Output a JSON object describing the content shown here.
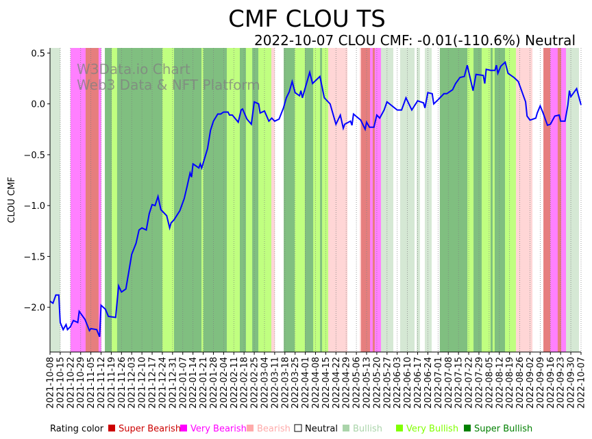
{
  "chart_data": {
    "type": "line",
    "title": "CMF CLOU TS",
    "subtitle": "2022-10-07 CLOU CMF: -0.01(-110.6%) Neutral",
    "xlabel": "",
    "ylabel": "CLOU CMF",
    "x_origin_date": "2021-10-08",
    "x_unit": "days since 2021-10-08",
    "xlim": [
      0,
      364
    ],
    "ylim": [
      -2.44,
      0.55
    ],
    "yticks": [
      0.5,
      0.0,
      -0.5,
      -1.0,
      -1.5,
      -2.0
    ],
    "ytick_labels": [
      "0.5",
      "0.0",
      "−0.5",
      "−1.0",
      "−1.5",
      "−2.0"
    ],
    "xtick_labels": [
      "2021-10-08",
      "2021-10-15",
      "2021-10-22",
      "2021-10-29",
      "2021-11-05",
      "2021-11-12",
      "2021-11-19",
      "2021-11-26",
      "2021-12-03",
      "2021-12-10",
      "2021-12-17",
      "2021-12-24",
      "2021-12-31",
      "2022-01-07",
      "2022-01-14",
      "2022-01-21",
      "2022-01-28",
      "2022-02-04",
      "2022-02-11",
      "2022-02-18",
      "2022-02-25",
      "2022-03-04",
      "2022-03-11",
      "2022-03-18",
      "2022-03-25",
      "2022-04-01",
      "2022-04-08",
      "2022-04-15",
      "2022-04-22",
      "2022-04-29",
      "2022-05-06",
      "2022-05-13",
      "2022-05-20",
      "2022-05-27",
      "2022-06-03",
      "2022-06-10",
      "2022-06-17",
      "2022-06-24",
      "2022-07-01",
      "2022-07-08",
      "2022-07-15",
      "2022-07-22",
      "2022-07-29",
      "2022-08-05",
      "2022-08-12",
      "2022-08-19",
      "2022-08-26",
      "2022-09-02",
      "2022-09-09",
      "2022-09-16",
      "2022-09-23",
      "2022-09-30",
      "2022-10-07"
    ],
    "series": [
      {
        "name": "CLOU CMF",
        "color": "#0000ff",
        "x": [
          0,
          2,
          4,
          6,
          7,
          9,
          11,
          12,
          14,
          16,
          19,
          20,
          24,
          27,
          28,
          32,
          34,
          35,
          38,
          40,
          45,
          47,
          49,
          52,
          54,
          56,
          59,
          61,
          63,
          66,
          68,
          70,
          72,
          74,
          76,
          80,
          82,
          83,
          85,
          89,
          92,
          94,
          96,
          97,
          98,
          102,
          103,
          104,
          108,
          110,
          112,
          115,
          117,
          119,
          122,
          123,
          125,
          129,
          131,
          132,
          135,
          138,
          140,
          143,
          144,
          147,
          150,
          152,
          154,
          157,
          160,
          162,
          164,
          166,
          168,
          171,
          172,
          173,
          178,
          180,
          185,
          188,
          192,
          196,
          199,
          201,
          202,
          206,
          207,
          208,
          213,
          216,
          217,
          219,
          222,
          224,
          226,
          229,
          231,
          238,
          241,
          244,
          248,
          252,
          256,
          257,
          259,
          262,
          263,
          266,
          270,
          272,
          276,
          278,
          281,
          284,
          286,
          290,
          292,
          297,
          298,
          299,
          302,
          305,
          306,
          307,
          309,
          312,
          314,
          318,
          321,
          326,
          327,
          329,
          333,
          334,
          336,
          338,
          341,
          343,
          346,
          349,
          350,
          353,
          355,
          356,
          357,
          361,
          364
        ],
        "y": [
          -1.94,
          -1.96,
          -1.88,
          -1.88,
          -2.15,
          -2.22,
          -2.17,
          -2.22,
          -2.19,
          -2.13,
          -2.15,
          -2.04,
          -2.12,
          -2.23,
          -2.21,
          -2.22,
          -2.29,
          -1.98,
          -2.02,
          -2.09,
          -2.1,
          -1.79,
          -1.85,
          -1.82,
          -1.65,
          -1.48,
          -1.37,
          -1.24,
          -1.22,
          -1.24,
          -1.08,
          -0.99,
          -1.0,
          -0.91,
          -1.04,
          -1.1,
          -1.22,
          -1.17,
          -1.14,
          -1.05,
          -0.93,
          -0.81,
          -0.68,
          -0.72,
          -0.59,
          -0.63,
          -0.59,
          -0.63,
          -0.44,
          -0.26,
          -0.17,
          -0.1,
          -0.1,
          -0.08,
          -0.08,
          -0.11,
          -0.11,
          -0.18,
          -0.06,
          -0.05,
          -0.15,
          -0.2,
          0.02,
          0.0,
          -0.09,
          -0.07,
          -0.17,
          -0.14,
          -0.17,
          -0.15,
          -0.04,
          0.06,
          0.12,
          0.22,
          0.11,
          0.08,
          0.13,
          0.06,
          0.31,
          0.2,
          0.27,
          0.06,
          0.0,
          -0.2,
          -0.11,
          -0.24,
          -0.2,
          -0.17,
          -0.21,
          -0.1,
          -0.16,
          -0.25,
          -0.18,
          -0.23,
          -0.23,
          -0.11,
          -0.14,
          -0.06,
          0.02,
          -0.06,
          -0.06,
          0.06,
          -0.06,
          0.03,
          0.01,
          -0.04,
          0.11,
          0.1,
          0.0,
          0.04,
          0.1,
          0.1,
          0.14,
          0.2,
          0.26,
          0.27,
          0.38,
          0.13,
          0.29,
          0.28,
          0.2,
          0.34,
          0.33,
          0.33,
          0.38,
          0.3,
          0.37,
          0.41,
          0.3,
          0.26,
          0.22,
          0.02,
          -0.12,
          -0.16,
          -0.14,
          -0.09,
          -0.02,
          -0.09,
          -0.21,
          -0.2,
          -0.12,
          -0.11,
          -0.17,
          -0.17,
          -0.01,
          0.13,
          0.07,
          0.15,
          -0.01
        ]
      }
    ],
    "rating_bands": [
      [
        0,
        7,
        "bullish"
      ],
      [
        7,
        14,
        "neutral"
      ],
      [
        14,
        24.4,
        "very_bearish"
      ],
      [
        24.4,
        33.3,
        "super_bearish"
      ],
      [
        33.3,
        35.2,
        "very_bearish"
      ],
      [
        35.2,
        37.6,
        "neutral"
      ],
      [
        37.6,
        42.3,
        "super_bullish"
      ],
      [
        42.3,
        46,
        "very_bullish"
      ],
      [
        46,
        77,
        "super_bullish"
      ],
      [
        77,
        85,
        "very_bullish"
      ],
      [
        85,
        103.8,
        "super_bullish"
      ],
      [
        103.8,
        105.2,
        "very_bullish"
      ],
      [
        105.2,
        121.2,
        "super_bullish"
      ],
      [
        121.2,
        130.1,
        "very_bullish"
      ],
      [
        130.1,
        134.3,
        "super_bullish"
      ],
      [
        134.3,
        138.6,
        "very_bullish"
      ],
      [
        138.6,
        142.8,
        "super_bullish"
      ],
      [
        142.8,
        151.7,
        "very_bullish"
      ],
      [
        151.7,
        154.1,
        "bearish"
      ],
      [
        154.1,
        160.2,
        "neutral"
      ],
      [
        160.2,
        167.7,
        "super_bullish"
      ],
      [
        167.7,
        174.7,
        "very_bullish"
      ],
      [
        174.7,
        180.4,
        "super_bullish"
      ],
      [
        180.4,
        185.1,
        "very_bullish"
      ],
      [
        185.1,
        186.5,
        "super_bullish"
      ],
      [
        186.5,
        190.7,
        "very_bullish"
      ],
      [
        190.7,
        203.9,
        "bearish"
      ],
      [
        203.9,
        212.3,
        "neutral"
      ],
      [
        212.3,
        213.2,
        "bearish"
      ],
      [
        213.2,
        219.4,
        "super_bearish"
      ],
      [
        219.4,
        221.2,
        "very_bearish"
      ],
      [
        221.2,
        222.6,
        "super_bearish"
      ],
      [
        222.6,
        226.9,
        "very_bearish"
      ],
      [
        226.9,
        235.3,
        "bullish"
      ],
      [
        235.3,
        240,
        "neutral"
      ],
      [
        240,
        249.9,
        "bullish"
      ],
      [
        249.9,
        251.3,
        "neutral"
      ],
      [
        251.3,
        253.6,
        "bullish"
      ],
      [
        253.6,
        256.9,
        "neutral"
      ],
      [
        256.9,
        261.6,
        "bullish"
      ],
      [
        261.6,
        267.2,
        "neutral"
      ],
      [
        267.2,
        286.1,
        "super_bullish"
      ],
      [
        286.1,
        290.3,
        "very_bullish"
      ],
      [
        290.3,
        295.9,
        "super_bullish"
      ],
      [
        295.9,
        302,
        "very_bullish"
      ],
      [
        302,
        303.4,
        "super_bullish"
      ],
      [
        303.4,
        304.8,
        "very_bullish"
      ],
      [
        304.8,
        311.9,
        "super_bullish"
      ],
      [
        311.9,
        319.4,
        "very_bullish"
      ],
      [
        319.4,
        330.7,
        "bearish"
      ],
      [
        330.7,
        338.2,
        "neutral"
      ],
      [
        338.2,
        342.9,
        "super_bearish"
      ],
      [
        342.9,
        348,
        "very_bearish"
      ],
      [
        348,
        350.4,
        "super_bearish"
      ],
      [
        350.4,
        353.7,
        "very_bearish"
      ],
      [
        353.7,
        362.6,
        "bullish"
      ],
      [
        362.6,
        364,
        "neutral"
      ]
    ],
    "band_colors": {
      "super_bearish": "#e67e7e",
      "very_bearish": "#ff80ff",
      "bearish": "#ffd6d6",
      "neutral": "#ffffff",
      "bullish": "#d5e8d4",
      "very_bullish": "#c0ff80",
      "super_bullish": "#80bf80"
    },
    "grid": "vertical dotted at weekly ticks",
    "watermark": [
      "W3Data.io Chart",
      "Web3 Data & NFT Platform"
    ],
    "legend": {
      "title": "Rating color",
      "placement": "bottom",
      "items": [
        {
          "label": "Super Bearish",
          "color": "#cc0000"
        },
        {
          "label": "Very Bearish",
          "color": "#ff00ff"
        },
        {
          "label": "Bearish",
          "color": "#ffaaaa"
        },
        {
          "label": "Neutral",
          "color": "#ffffff"
        },
        {
          "label": "Bullish",
          "color": "#aad4aa"
        },
        {
          "label": "Very Bullish",
          "color": "#80ff00"
        },
        {
          "label": "Super Bullish",
          "color": "#008000"
        }
      ]
    }
  }
}
